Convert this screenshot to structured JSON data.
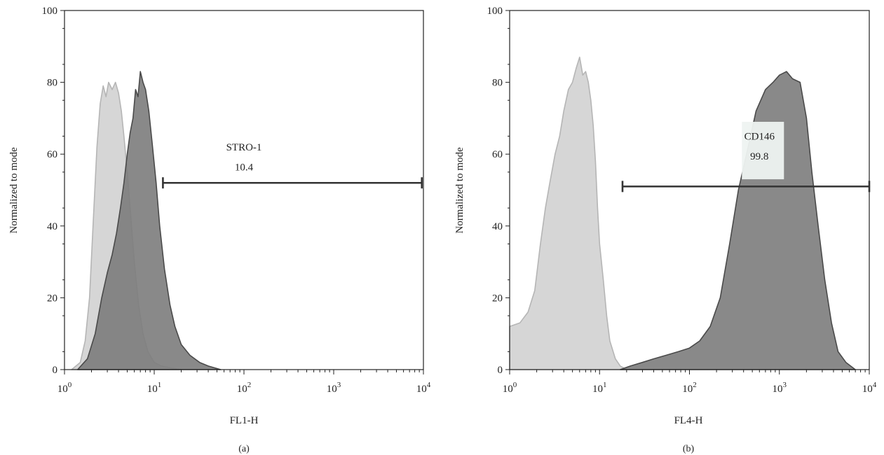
{
  "chart_data": [
    {
      "type": "area",
      "panel_label": "(a)",
      "xlabel": "FL1-H",
      "ylabel": "Normalized to mode",
      "xscale": "log",
      "xlim": [
        1,
        10000
      ],
      "ylim": [
        0,
        100
      ],
      "x_ticks": [
        {
          "value": 1,
          "base": "10",
          "exp": "0"
        },
        {
          "value": 10,
          "base": "10",
          "exp": "1"
        },
        {
          "value": 100,
          "base": "10",
          "exp": "2"
        },
        {
          "value": 1000,
          "base": "10",
          "exp": "3"
        },
        {
          "value": 10000,
          "base": "10",
          "exp": "4"
        }
      ],
      "y_ticks": [
        {
          "value": 0,
          "label": "0"
        },
        {
          "value": 20,
          "label": "20"
        },
        {
          "value": 40,
          "label": "40"
        },
        {
          "value": 60,
          "label": "60"
        },
        {
          "value": 80,
          "label": "80"
        },
        {
          "value": 100,
          "label": "100"
        }
      ],
      "grid": false,
      "series": [
        {
          "color": "#d6d6d6",
          "stroke": "#b5b5b5",
          "x": [
            1.2,
            1.5,
            1.7,
            1.9,
            2.1,
            2.3,
            2.5,
            2.7,
            2.9,
            3.1,
            3.4,
            3.7,
            4.0,
            4.3,
            4.6,
            5.0,
            5.5,
            6.0,
            6.7,
            7.5,
            8.5,
            10,
            12,
            15,
            20
          ],
          "y": [
            0,
            2,
            8,
            20,
            42,
            62,
            74,
            79,
            76,
            80,
            78,
            80,
            77,
            72,
            65,
            55,
            42,
            30,
            18,
            10,
            5,
            2,
            1,
            0.5,
            0
          ]
        },
        {
          "color": "#7c7c7c",
          "stroke": "#4a4a4a",
          "x": [
            1.4,
            1.8,
            2.2,
            2.6,
            3.0,
            3.4,
            3.8,
            4.2,
            4.6,
            5.0,
            5.4,
            5.8,
            6.2,
            6.6,
            7.0,
            7.5,
            8.0,
            8.7,
            9.5,
            10.5,
            11.5,
            13,
            15,
            17,
            20,
            25,
            32,
            40,
            55
          ],
          "y": [
            0,
            3,
            10,
            20,
            27,
            32,
            38,
            45,
            52,
            60,
            66,
            70,
            78,
            76,
            83,
            80,
            78,
            72,
            63,
            52,
            40,
            28,
            18,
            12,
            7,
            4,
            2,
            1,
            0
          ]
        }
      ],
      "gate": {
        "x_start": 12.5,
        "x_end": 9600,
        "y": 52
      },
      "annotation": {
        "label": "STRO-1",
        "value": "10.4",
        "x": 100,
        "y_label": 61,
        "y_value": 55.5
      }
    },
    {
      "type": "area",
      "panel_label": "(b)",
      "xlabel": "FL4-H",
      "ylabel": "Normalized to mode",
      "xscale": "log",
      "xlim": [
        1,
        10000
      ],
      "ylim": [
        0,
        100
      ],
      "x_ticks": [
        {
          "value": 1,
          "base": "10",
          "exp": "0"
        },
        {
          "value": 10,
          "base": "10",
          "exp": "1"
        },
        {
          "value": 100,
          "base": "10",
          "exp": "2"
        },
        {
          "value": 1000,
          "base": "10",
          "exp": "3"
        },
        {
          "value": 10000,
          "base": "10",
          "exp": "4"
        }
      ],
      "y_ticks": [
        {
          "value": 0,
          "label": "0"
        },
        {
          "value": 20,
          "label": "20"
        },
        {
          "value": 40,
          "label": "40"
        },
        {
          "value": 60,
          "label": "60"
        },
        {
          "value": 80,
          "label": "80"
        },
        {
          "value": 100,
          "label": "100"
        }
      ],
      "grid": false,
      "series": [
        {
          "color": "#d6d6d6",
          "stroke": "#b5b5b5",
          "x": [
            1.0,
            1.3,
            1.6,
            1.9,
            2.2,
            2.5,
            2.8,
            3.2,
            3.6,
            4.0,
            4.5,
            5.0,
            5.5,
            6.0,
            6.5,
            7.0,
            7.5,
            8.0,
            8.5,
            9.0,
            9.5,
            10,
            11,
            12,
            13,
            15,
            17,
            20
          ],
          "y": [
            12,
            13,
            16,
            22,
            35,
            45,
            52,
            60,
            65,
            72,
            78,
            80,
            84,
            87,
            82,
            83,
            80,
            75,
            68,
            58,
            45,
            35,
            25,
            15,
            8,
            3,
            1,
            0
          ]
        },
        {
          "color": "#7c7c7c",
          "stroke": "#4a4a4a",
          "x": [
            17,
            22,
            30,
            40,
            55,
            75,
            100,
            130,
            170,
            220,
            280,
            350,
            450,
            550,
            700,
            850,
            1000,
            1200,
            1400,
            1700,
            2000,
            2300,
            2700,
            3200,
            3800,
            4500,
            5500,
            7000
          ],
          "y": [
            0,
            1,
            2,
            3,
            4,
            5,
            6,
            8,
            12,
            20,
            35,
            50,
            62,
            72,
            78,
            80,
            82,
            83,
            81,
            80,
            70,
            55,
            40,
            25,
            13,
            5,
            2,
            0
          ]
        }
      ],
      "gate": {
        "x_start": 18,
        "x_end": 10000,
        "y": 51
      },
      "annotation": {
        "label": "CD146",
        "value": "99.8",
        "x": 600,
        "y_label": 64,
        "y_value": 58.5
      }
    }
  ]
}
